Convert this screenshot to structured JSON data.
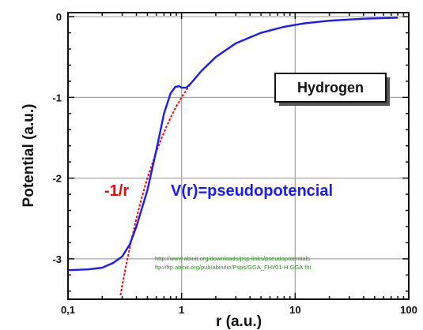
{
  "chart_data": {
    "type": "line",
    "xlabel": "r (a.u.)",
    "ylabel": "Potential (a.u.)",
    "xscale": "log",
    "xlim": [
      0.1,
      100
    ],
    "ylim": [
      -3.5,
      0.05
    ],
    "grid": true,
    "x_ticks": [
      {
        "value": 0.1,
        "label": "0,1"
      },
      {
        "value": 1,
        "label": "1"
      },
      {
        "value": 10,
        "label": "10"
      },
      {
        "value": 100,
        "label": "100"
      }
    ],
    "y_ticks": [
      {
        "value": 0,
        "label": "0"
      },
      {
        "value": -1,
        "label": "-1"
      },
      {
        "value": -2,
        "label": "-2"
      },
      {
        "value": -3,
        "label": "-3"
      }
    ],
    "series": [
      {
        "name": "-1/r",
        "color": "#ff0000",
        "style": "dashed",
        "points": [
          [
            0.29,
            -3.45
          ],
          [
            0.3,
            -3.33
          ],
          [
            0.33,
            -3.03
          ],
          [
            0.36,
            -2.78
          ],
          [
            0.4,
            -2.5
          ],
          [
            0.45,
            -2.22
          ],
          [
            0.5,
            -2.0
          ],
          [
            0.6,
            -1.67
          ],
          [
            0.7,
            -1.43
          ],
          [
            0.8,
            -1.25
          ],
          [
            0.9,
            -1.11
          ],
          [
            1.0,
            -1.0
          ],
          [
            1.2,
            -0.83
          ],
          [
            1.5,
            -0.67
          ],
          [
            2,
            -0.5
          ],
          [
            3,
            -0.33
          ],
          [
            5,
            -0.2
          ],
          [
            8,
            -0.125
          ],
          [
            12,
            -0.083
          ],
          [
            20,
            -0.05
          ],
          [
            40,
            -0.025
          ],
          [
            80,
            -0.0125
          ]
        ]
      },
      {
        "name": "V(r)=pseudopotencial",
        "color": "#1a1aff",
        "style": "solid",
        "points": [
          [
            0.1,
            -3.14
          ],
          [
            0.15,
            -3.13
          ],
          [
            0.2,
            -3.11
          ],
          [
            0.25,
            -3.05
          ],
          [
            0.3,
            -2.97
          ],
          [
            0.35,
            -2.82
          ],
          [
            0.4,
            -2.6
          ],
          [
            0.5,
            -2.15
          ],
          [
            0.6,
            -1.65
          ],
          [
            0.7,
            -1.2
          ],
          [
            0.8,
            -0.95
          ],
          [
            0.88,
            -0.87
          ],
          [
            0.95,
            -0.86
          ],
          [
            1.0,
            -0.88
          ],
          [
            1.1,
            -0.88
          ],
          [
            1.2,
            -0.83
          ],
          [
            1.5,
            -0.67
          ],
          [
            2,
            -0.5
          ],
          [
            3,
            -0.33
          ],
          [
            5,
            -0.2
          ],
          [
            8,
            -0.125
          ],
          [
            12,
            -0.083
          ],
          [
            20,
            -0.05
          ],
          [
            40,
            -0.025
          ],
          [
            80,
            -0.0125
          ]
        ]
      }
    ],
    "annotations": {
      "red_label": "-1/r",
      "blue_label": "V(r)=pseudopotencial",
      "box_label": "Hydrogen",
      "credit_lines": [
        "http://www.abinit.org/downloads/psp-links/pseudopotentials",
        "ftp://ftp.abinit.org/pub/abinitio/Psps/GGA_FHI/01-H.GGA.fhi"
      ]
    }
  }
}
